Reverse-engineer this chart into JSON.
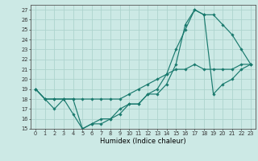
{
  "xlabel": "Humidex (Indice chaleur)",
  "xlim": [
    -0.5,
    23.5
  ],
  "ylim": [
    15,
    27.5
  ],
  "yticks": [
    15,
    16,
    17,
    18,
    19,
    20,
    21,
    22,
    23,
    24,
    25,
    26,
    27
  ],
  "xticks": [
    0,
    1,
    2,
    3,
    4,
    5,
    6,
    7,
    8,
    9,
    10,
    11,
    12,
    13,
    14,
    15,
    16,
    17,
    18,
    19,
    20,
    21,
    22,
    23
  ],
  "background_color": "#cce9e5",
  "grid_color": "#aed4ce",
  "line_color": "#1a7a6e",
  "series": [
    {
      "x": [
        0,
        1,
        2,
        3,
        4,
        5,
        6,
        7,
        8,
        9,
        10,
        11,
        12,
        13,
        14,
        15,
        16,
        17,
        18,
        19,
        20,
        21,
        22,
        23
      ],
      "y": [
        19,
        18,
        18,
        18,
        18,
        18,
        18,
        18,
        18,
        18,
        18.5,
        19,
        19.5,
        20,
        20.5,
        21,
        21,
        21.5,
        21,
        21,
        21,
        21,
        21.5,
        21.5
      ]
    },
    {
      "x": [
        0,
        1,
        2,
        3,
        4,
        5,
        6,
        7,
        8,
        9,
        10,
        11,
        12,
        13,
        14,
        15,
        16,
        17,
        18,
        19,
        20,
        21,
        22,
        23
      ],
      "y": [
        19,
        18,
        17,
        18,
        16.5,
        15,
        15.5,
        15.5,
        16,
        16.5,
        17.5,
        17.5,
        18.5,
        18.5,
        19.5,
        21.5,
        25.5,
        27,
        26.5,
        18.5,
        19.5,
        20,
        21,
        21.5
      ]
    },
    {
      "x": [
        0,
        1,
        2,
        3,
        4,
        5,
        6,
        7,
        8,
        9,
        10,
        11,
        12,
        13,
        14,
        15,
        16,
        17,
        18,
        19,
        20,
        21,
        22,
        23
      ],
      "y": [
        19,
        18,
        18,
        18,
        18,
        15,
        15.5,
        16,
        16,
        17,
        17.5,
        17.5,
        18.5,
        19,
        20.5,
        23,
        25,
        27,
        26.5,
        26.5,
        25.5,
        24.5,
        23,
        21.5
      ]
    }
  ]
}
